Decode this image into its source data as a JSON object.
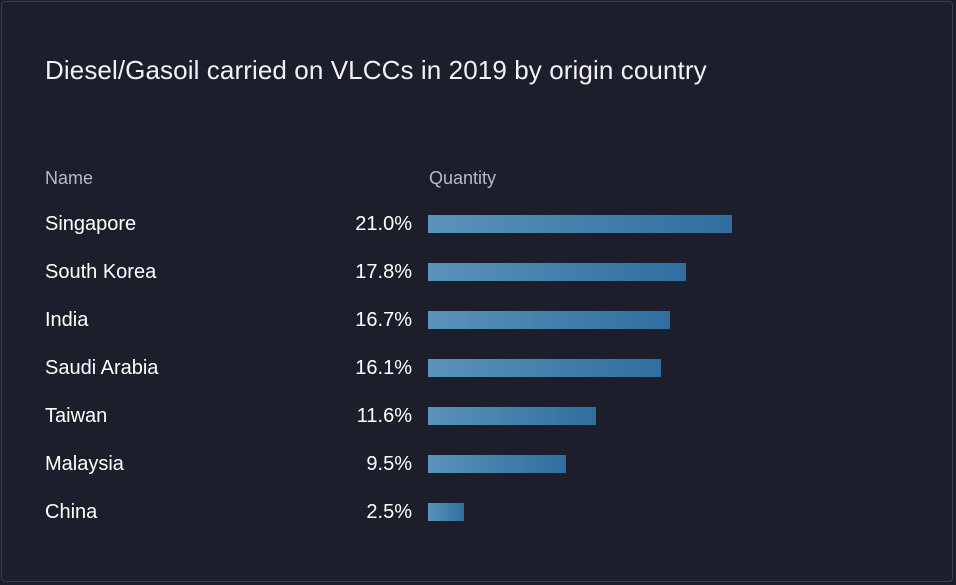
{
  "chart_data": {
    "type": "bar",
    "orientation": "horizontal",
    "title": "Diesel/Gasoil carried on VLCCs in 2019 by origin country",
    "columns": {
      "name": "Name",
      "quantity": "Quantity"
    },
    "categories": [
      "Singapore",
      "South Korea",
      "India",
      "Saudi Arabia",
      "Taiwan",
      "Malaysia",
      "China"
    ],
    "values": [
      21.0,
      17.8,
      16.7,
      16.1,
      11.6,
      9.5,
      2.5
    ],
    "value_labels": [
      "21.0%",
      "17.8%",
      "16.7%",
      "16.1%",
      "11.6%",
      "9.5%",
      "2.5%"
    ],
    "unit": "%",
    "xlim": [
      0,
      30.0
    ],
    "bar_color_start": "#5a93bb",
    "bar_color_end": "#2f6e9f",
    "grid": false,
    "legend": "none"
  },
  "colors": {
    "background": "#1c1e2b",
    "border": "#3a3e4c",
    "header_text": "#b7bac6",
    "text": "#ffffff"
  }
}
